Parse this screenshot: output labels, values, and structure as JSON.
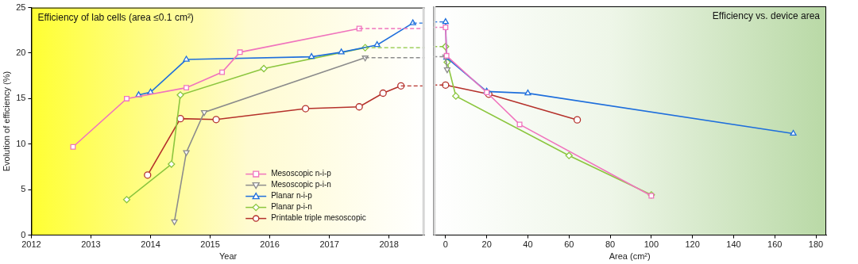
{
  "chart_data": [
    {
      "type": "line",
      "xlabel": "Year",
      "ylabel": "Evolution of efficiency (%)",
      "annotation": "Efficiency of lab cells (area ≤0.1 cm²)",
      "xlim": [
        2012,
        2018.6
      ],
      "xticks": [
        2012,
        2013,
        2014,
        2015,
        2016,
        2017,
        2018
      ],
      "ylim": [
        0,
        25
      ],
      "yticks": [
        0,
        5,
        10,
        15,
        20,
        25
      ],
      "grid": false,
      "legend": "lower right",
      "series": [
        {
          "name": "Mesoscopic n-i-p",
          "color": "#f074bd",
          "marker": "square",
          "x": [
            2012.7,
            2013.6,
            2014.6,
            2015.2,
            2015.5,
            2017.5
          ],
          "values": [
            9.7,
            15.0,
            16.2,
            17.9,
            20.1,
            22.7
          ]
        },
        {
          "name": "Mesoscopic p-i-n",
          "color": "#8c8c8c",
          "marker": "triangle-down",
          "x": [
            2014.4,
            2014.6,
            2014.9,
            2017.6
          ],
          "values": [
            1.5,
            9.1,
            13.5,
            19.5
          ]
        },
        {
          "name": "Planar n-i-p",
          "color": "#1f6fdc",
          "marker": "triangle",
          "x": [
            2013.8,
            2014.0,
            2014.6,
            2016.7,
            2017.2,
            2017.8,
            2018.4
          ],
          "values": [
            15.4,
            15.7,
            19.3,
            19.6,
            20.1,
            20.9,
            23.3
          ]
        },
        {
          "name": "Planar p-i-n",
          "color": "#8cc63f",
          "marker": "diamond",
          "x": [
            2013.6,
            2014.35,
            2014.5,
            2015.9,
            2017.6
          ],
          "values": [
            3.9,
            7.8,
            15.4,
            18.3,
            20.6
          ]
        },
        {
          "name": "Printable triple mesoscopic",
          "color": "#b5312b",
          "marker": "circle",
          "x": [
            2013.95,
            2014.5,
            2015.1,
            2016.6,
            2017.5,
            2017.9,
            2018.2
          ],
          "values": [
            6.6,
            12.8,
            12.7,
            13.9,
            14.1,
            15.6,
            16.4
          ]
        }
      ]
    },
    {
      "type": "line",
      "xlabel": "Area (cm²)",
      "annotation": "Efficiency vs. device area",
      "xlim": [
        -6,
        185
      ],
      "xticks": [
        0,
        20,
        40,
        60,
        80,
        100,
        120,
        140,
        160,
        180
      ],
      "ylim": [
        0,
        25
      ],
      "tick_labels": "x",
      "grid": false,
      "legend": false,
      "series": [
        {
          "name": "Mesoscopic n-i-p",
          "color": "#f074bd",
          "marker": "square",
          "x": [
            0,
            0.5,
            20,
            36,
            100
          ],
          "values": [
            22.7,
            19.6,
            15.6,
            12.1,
            4.3
          ]
        },
        {
          "name": "Mesoscopic p-i-n",
          "color": "#8c8c8c",
          "marker": "triangle-down",
          "x": [
            0,
            0.8
          ],
          "values": [
            19.5,
            18.1
          ]
        },
        {
          "name": "Planar n-i-p",
          "color": "#1f6fdc",
          "marker": "triangle",
          "x": [
            0,
            0.5,
            20,
            40,
            169
          ],
          "values": [
            23.3,
            19.4,
            15.7,
            15.5,
            11.1
          ]
        },
        {
          "name": "Planar p-i-n",
          "color": "#8cc63f",
          "marker": "diamond",
          "x": [
            0,
            0.8,
            5,
            60,
            100
          ],
          "values": [
            20.6,
            18.9,
            15.2,
            8.7,
            4.4
          ]
        },
        {
          "name": "Printable triple mesoscopic",
          "color": "#b5312b",
          "marker": "circle",
          "x": [
            0,
            21,
            64
          ],
          "values": [
            16.4,
            15.4,
            12.6
          ]
        }
      ]
    }
  ]
}
